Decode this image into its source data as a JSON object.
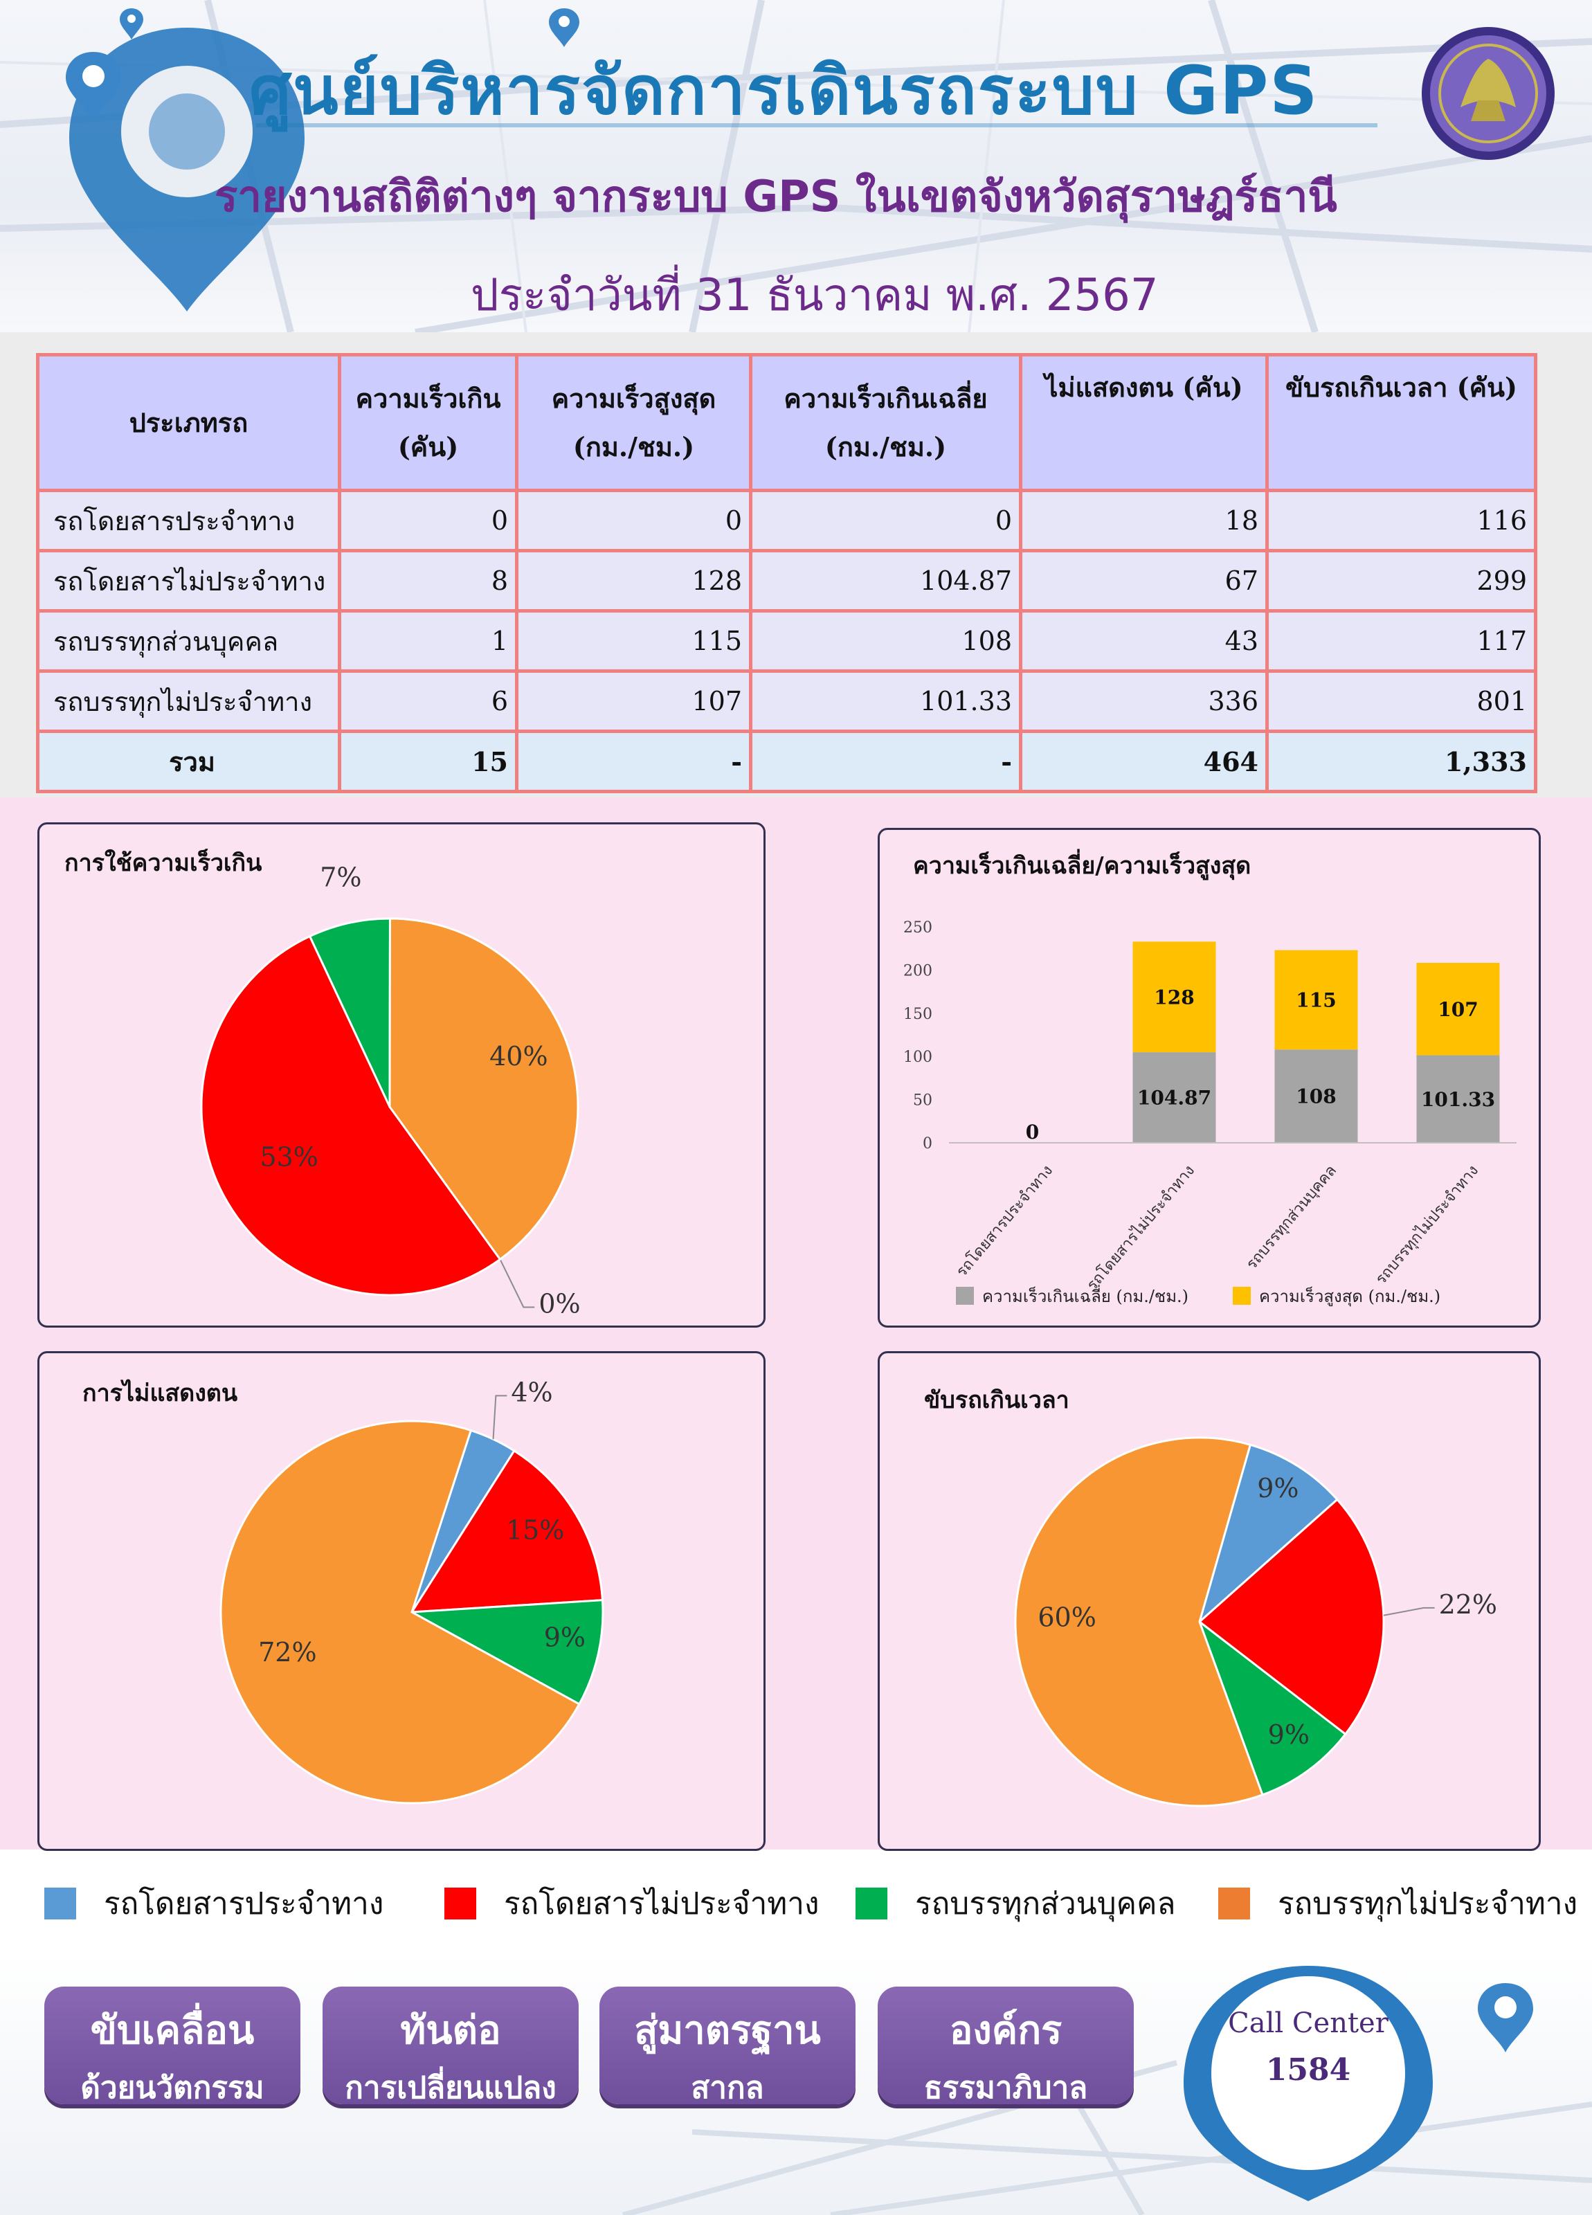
{
  "header": {
    "title": "ศูนย์บริหารจัดการเดินรถระบบ GPS",
    "subtitle": "รายงานสถิติต่างๆ จากระบบ GPS ในเขตจังหวัดสุราษฎร์ธานี",
    "date": "ประจำวันที่   31   ธันวาคม   พ.ศ. 2567"
  },
  "table": {
    "headers": {
      "type": "ประเภทรถ",
      "speeding_1": "ความเร็วเกิน",
      "speeding_2": "(คัน)",
      "max_speed_1": "ความเร็วสูงสุด",
      "max_speed_2": "(กม./ชม.)",
      "avg_speed_1": "ความเร็วเกินเฉลี่ย",
      "avg_speed_2": "(กม./ชม.)",
      "no_card": "ไม่แสดงตน (คัน)",
      "overtime": "ขับรถเกินเวลา (คัน)"
    },
    "rows": [
      {
        "type": "รถโดยสารประจำทาง",
        "speeding": "0",
        "max_speed": "0",
        "avg_speed": "0",
        "no_card": "18",
        "overtime": "116"
      },
      {
        "type": "รถโดยสารไม่ประจำทาง",
        "speeding": "8",
        "max_speed": "128",
        "avg_speed": "104.87",
        "no_card": "67",
        "overtime": "299"
      },
      {
        "type": "รถบรรทุกส่วนบุคคล",
        "speeding": "1",
        "max_speed": "115",
        "avg_speed": "108",
        "no_card": "43",
        "overtime": "117"
      },
      {
        "type": "รถบรรทุกไม่ประจำทาง",
        "speeding": "6",
        "max_speed": "107",
        "avg_speed": "101.33",
        "no_card": "336",
        "overtime": "801"
      }
    ],
    "total": {
      "type": "รวม",
      "speeding": "15",
      "max_speed": "-",
      "avg_speed": "-",
      "no_card": "464",
      "overtime": "1,333"
    }
  },
  "colors": {
    "blue": "#5b9bd5",
    "red": "#ff0000",
    "green": "#00b050",
    "orange": "#f79632",
    "gray": "#a5a5a5",
    "gold": "#ffc000"
  },
  "chart_data": [
    {
      "type": "pie",
      "title": "การใช้ความเร็วเกิน",
      "categories": [
        "รถโดยสารประจำทาง",
        "รถโดยสารไม่ประจำทาง",
        "รถบรรทุกส่วนบุคคล",
        "รถบรรทุกไม่ประจำทาง"
      ],
      "values": [
        0,
        53,
        7,
        40
      ],
      "labels": [
        "0%",
        "53%",
        "7%",
        "40%"
      ]
    },
    {
      "type": "bar",
      "title": "ความเร็วเกินเฉลี่ย/ความเร็วสูงสุด",
      "stacked": true,
      "categories": [
        "รถโดยสารประจำทาง",
        "รถโดยสารไม่ประจำทาง",
        "รถบรรทุกส่วนบุคคล",
        "รถบรรทุกไม่ประจำทาง"
      ],
      "series": [
        {
          "name": "ความเร็วเกินเฉลี่ย (กม./ชม.)",
          "values": [
            0,
            104.87,
            108,
            101.33
          ]
        },
        {
          "name": "ความเร็วสูงสุด (กม./ชม.)",
          "values": [
            0,
            128,
            115,
            107
          ]
        }
      ],
      "zero_label": "0",
      "yticks": [
        "0",
        "50",
        "100",
        "150",
        "200",
        "250"
      ],
      "ylim": [
        0,
        250
      ],
      "legend": "bottom"
    },
    {
      "type": "pie",
      "title": "การไม่แสดงตน",
      "categories": [
        "รถโดยสารประจำทาง",
        "รถโดยสารไม่ประจำทาง",
        "รถบรรทุกส่วนบุคคล",
        "รถบรรทุกไม่ประจำทาง"
      ],
      "values": [
        4,
        15,
        9,
        72
      ],
      "labels": [
        "4%",
        "15%",
        "9%",
        "72%"
      ]
    },
    {
      "type": "pie",
      "title": "ขับรถเกินเวลา",
      "categories": [
        "รถโดยสารประจำทาง",
        "รถโดยสารไม่ประจำทาง",
        "รถบรรทุกส่วนบุคคล",
        "รถบรรทุกไม่ประจำทาง"
      ],
      "values": [
        9,
        22,
        9,
        60
      ],
      "labels": [
        "9%",
        "22%",
        "9%",
        "60%"
      ]
    }
  ],
  "legend": {
    "items": [
      "รถโดยสารประจำทาง",
      "รถโดยสารไม่ประจำทาง",
      "รถบรรทุกส่วนบุคคล",
      "รถบรรทุกไม่ประจำทาง"
    ]
  },
  "footer": {
    "buttons": [
      {
        "l1": "ขับเคลื่อน",
        "l2": "ด้วยนวัตกรรม"
      },
      {
        "l1": "ทันต่อ",
        "l2": "การเปลี่ยนแปลง"
      },
      {
        "l1": "สู่มาตรฐาน",
        "l2": "สากล"
      },
      {
        "l1": "องค์กร",
        "l2": "ธรรมาภิบาล"
      }
    ],
    "call_center_label": "Call Center",
    "call_center_number": "1584"
  }
}
